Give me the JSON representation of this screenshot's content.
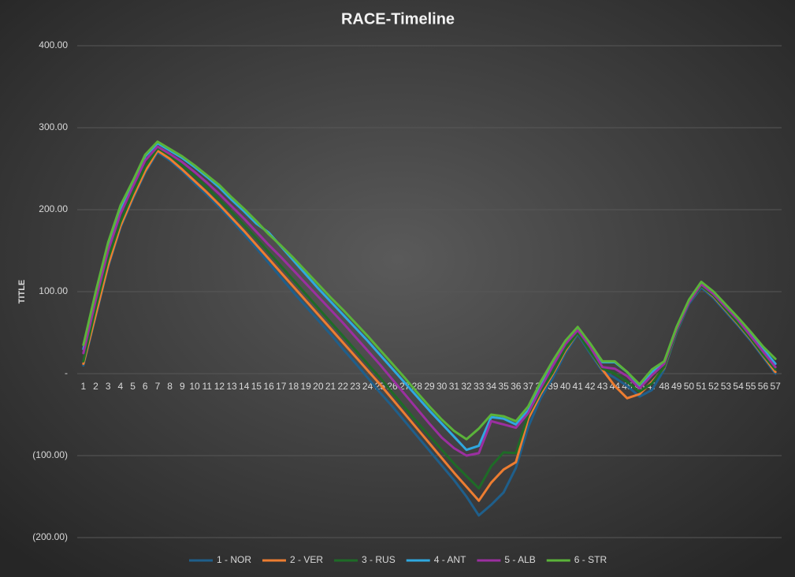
{
  "chart_data": {
    "type": "line",
    "title": "RACE-Timeline",
    "y_label": "TITLE",
    "categories": [
      1,
      2,
      3,
      4,
      5,
      6,
      7,
      8,
      9,
      10,
      11,
      12,
      13,
      14,
      15,
      16,
      17,
      18,
      19,
      20,
      21,
      22,
      23,
      24,
      25,
      26,
      27,
      28,
      29,
      30,
      31,
      32,
      33,
      34,
      35,
      36,
      37,
      38,
      39,
      40,
      41,
      42,
      43,
      44,
      45,
      46,
      47,
      48,
      49,
      50,
      51,
      52,
      53,
      54,
      55,
      56,
      57
    ],
    "ylim": [
      -200,
      400
    ],
    "yticks": [
      {
        "value": -200,
        "label": "(200.00)"
      },
      {
        "value": -100,
        "label": "(100.00)"
      },
      {
        "value": 0,
        "label": "-"
      },
      {
        "value": 100,
        "label": "100.00"
      },
      {
        "value": 200,
        "label": "200.00"
      },
      {
        "value": 300,
        "label": "300.00"
      },
      {
        "value": 400,
        "label": "400.00"
      }
    ],
    "grid": true,
    "legend": "bottom",
    "series": [
      {
        "name": "1 - NOR",
        "color": "#1f5f8b",
        "values": [
          10,
          70,
          130,
          178,
          213,
          245,
          270,
          260,
          247,
          232,
          218,
          203,
          187,
          170,
          153,
          135,
          117,
          99,
          82,
          65,
          48,
          30,
          13,
          -5,
          -23,
          -40,
          -58,
          -76,
          -94,
          -112,
          -130,
          -150,
          -173,
          -160,
          -145,
          -115,
          -65,
          -30,
          -5,
          25,
          48,
          25,
          3,
          -5,
          -15,
          -28,
          -20,
          5,
          50,
          85,
          105,
          92,
          75,
          58,
          40,
          20,
          0
        ]
      },
      {
        "name": "2 - VER",
        "color": "#ed7d31",
        "values": [
          12,
          72,
          132,
          180,
          215,
          247,
          272,
          262,
          249,
          235,
          221,
          206,
          190,
          174,
          157,
          140,
          123,
          106,
          89,
          72,
          55,
          38,
          21,
          4,
          -13,
          -31,
          -49,
          -67,
          -85,
          -103,
          -121,
          -138,
          -155,
          -133,
          -117,
          -108,
          -55,
          -25,
          0,
          28,
          50,
          27,
          5,
          -15,
          -30,
          -25,
          -10,
          7,
          52,
          87,
          107,
          94,
          77,
          60,
          42,
          22,
          2
        ]
      },
      {
        "name": "3 - RUS",
        "color": "#1e6b27",
        "values": [
          15,
          80,
          140,
          185,
          220,
          252,
          275,
          266,
          254,
          241,
          227,
          212,
          197,
          181,
          165,
          148,
          131,
          114,
          97,
          80,
          63,
          46,
          29,
          12,
          -5,
          -23,
          -41,
          -59,
          -76,
          -93,
          -110,
          -125,
          -140,
          -113,
          -96,
          -97,
          -50,
          -22,
          2,
          30,
          50,
          27,
          6,
          0,
          -10,
          -22,
          -12,
          8,
          52,
          87,
          107,
          95,
          78,
          61,
          43,
          23,
          5
        ]
      },
      {
        "name": "4 - ANT",
        "color": "#2fa8e0",
        "values": [
          30,
          95,
          155,
          200,
          232,
          265,
          281,
          272,
          263,
          252,
          240,
          227,
          212,
          198,
          183,
          172,
          155,
          138,
          121,
          104,
          88,
          72,
          56,
          40,
          23,
          6,
          -11,
          -28,
          -45,
          -61,
          -77,
          -93,
          -88,
          -53,
          -55,
          -62,
          -45,
          -15,
          12,
          38,
          55,
          35,
          14,
          14,
          2,
          -15,
          2,
          14,
          55,
          88,
          110,
          98,
          82,
          66,
          48,
          30,
          12
        ]
      },
      {
        "name": "5 - ALB",
        "color": "#9b2fa0",
        "values": [
          25,
          90,
          150,
          195,
          228,
          260,
          277,
          268,
          258,
          246,
          233,
          219,
          204,
          189,
          173,
          157,
          142,
          126,
          110,
          94,
          78,
          62,
          45,
          28,
          11,
          -7,
          -25,
          -43,
          -61,
          -78,
          -91,
          -100,
          -97,
          -58,
          -62,
          -66,
          -48,
          -18,
          10,
          36,
          53,
          33,
          8,
          6,
          -3,
          -18,
          -2,
          12,
          54,
          87,
          109,
          97,
          81,
          65,
          46,
          27,
          8
        ]
      },
      {
        "name": "6 - STR",
        "color": "#5bb33a",
        "values": [
          35,
          100,
          160,
          205,
          235,
          267,
          283,
          274,
          265,
          254,
          242,
          230,
          215,
          201,
          186,
          170,
          156,
          141,
          125,
          109,
          93,
          78,
          62,
          46,
          29,
          12,
          -5,
          -23,
          -40,
          -56,
          -70,
          -80,
          -67,
          -50,
          -52,
          -58,
          -40,
          -10,
          16,
          40,
          57,
          37,
          15,
          15,
          2,
          -13,
          5,
          15,
          57,
          90,
          112,
          100,
          84,
          68,
          51,
          33,
          18
        ]
      }
    ]
  }
}
